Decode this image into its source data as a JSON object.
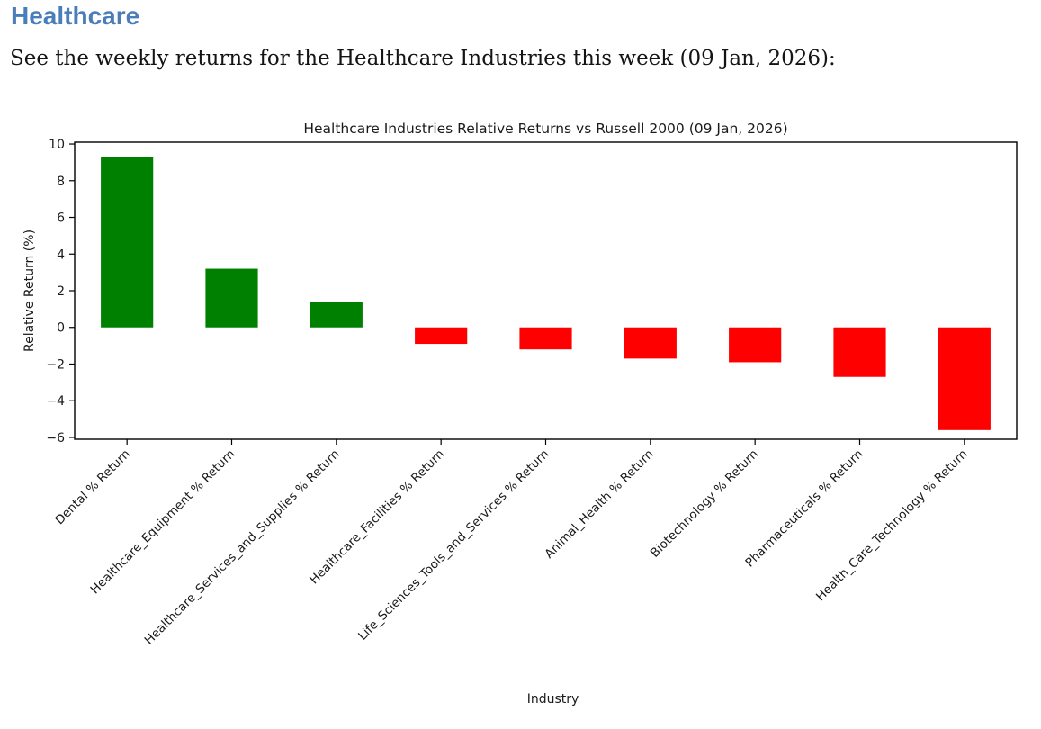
{
  "page": {
    "heading": "Healthcare",
    "subtitle": "See the weekly returns for the Healthcare Industries this week (09 Jan, 2026):"
  },
  "colors": {
    "heading_blue": "#4a7ebb",
    "positive_bar": "#008000",
    "negative_bar": "#ff0000",
    "axis_text": "#1a1a1a",
    "frame": "#000000"
  },
  "chart_data": {
    "type": "bar",
    "title": "Healthcare Industries Relative Returns vs Russell 2000 (09 Jan, 2026)",
    "xlabel": "Industry",
    "ylabel": "Relative Return (%)",
    "categories": [
      "Dental % Return",
      "Healthcare_Equipment % Return",
      "Healthcare_Services_and_Supplies % Return",
      "Healthcare_Facilities % Return",
      "Life_Sciences_Tools_and_Services % Return",
      "Animal_Health % Return",
      "Biotechnology % Return",
      "Pharmaceuticals % Return",
      "Health_Care_Technology % Return"
    ],
    "values": [
      9.3,
      3.2,
      1.4,
      -0.9,
      -1.2,
      -1.7,
      -1.9,
      -2.7,
      -5.6
    ],
    "yticks": [
      10,
      8,
      6,
      4,
      2,
      0,
      -2,
      -4,
      -6
    ],
    "ylim": [
      -6.1,
      10.1
    ],
    "grid": false,
    "legend_position": "none",
    "bar_rule": "green if value >= 0 else red",
    "x_tick_rotation_deg": 45
  }
}
